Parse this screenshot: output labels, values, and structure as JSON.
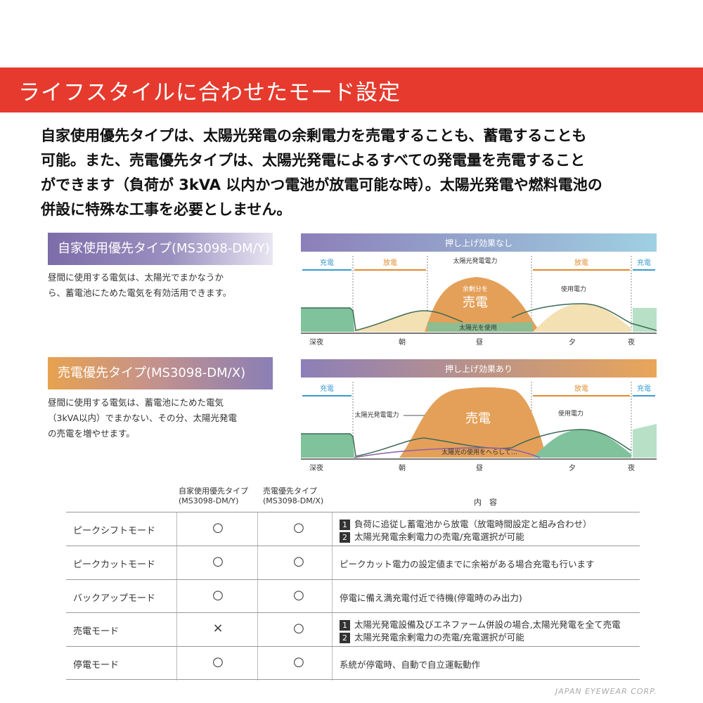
{
  "banner": {
    "title": "ライフスタイルに合わせたモード設定"
  },
  "intro": {
    "lines": [
      "自家使用優先タイプは、太陽光発電の余剰電力を売電することも、蓄電することも",
      "可能。また、売電優先タイプは、太陽光発電によるすべての発電量を売電すること",
      "ができます（負荷が 3kVA 以内かつ電池が放電可能な時）。太陽光発電や燃料電池の",
      "併設に特殊な工事を必要としません。"
    ]
  },
  "types": [
    {
      "label": "自家使用優先タイプ(MS3098-DM/Y)",
      "desc": [
        "昼間に使用する電気は、太陽光でまかなうか",
        "ら、蓄電池にためた電気を有効活用できます。"
      ]
    },
    {
      "label": "売電優先タイプ(MS3098-DM/X)",
      "desc": [
        "昼間に使用する電気は、蓄電池にためた電気",
        "（3kVA以内）でまかない、その分、太陽光発電",
        "の売電を増やせます。"
      ]
    }
  ],
  "charts": [
    {
      "header": "押し上げ効果なし",
      "phases": [
        "充電",
        "放電",
        "放電",
        "充電"
      ],
      "labels": {
        "solar": "太陽光発電電力",
        "surplus": "余剰分を",
        "sell": "売電",
        "usage": "使用電力",
        "use_solar": "太陽光を使用"
      },
      "time_axis": [
        "深夜",
        "朝",
        "昼",
        "夕",
        "夜"
      ]
    },
    {
      "header": "押し上げ効果あり",
      "phases": [
        "充電",
        "放電",
        "充電"
      ],
      "labels": {
        "solar": "太陽光発電電力",
        "sell": "売電",
        "usage": "使用電力",
        "reduce": "太陽光の使用をへらして…"
      },
      "time_axis": [
        "深夜",
        "朝",
        "昼",
        "夕",
        "夜"
      ]
    }
  ],
  "colors": {
    "banner": "#e53a2d",
    "charge": "#3a9bd0",
    "discharge": "#e38a2b",
    "sell": "#e4a059",
    "green": "#7fc29b",
    "cream": "#f3e1b3"
  },
  "table": {
    "headers": {
      "type_y": [
        "自家使用優先タイプ",
        "(MS3098-DM/Y)"
      ],
      "type_x": [
        "売電優先タイプ",
        "(MS3098-DM/X)"
      ],
      "content": "内　容"
    },
    "rows": [
      {
        "mode": "ピークシフトモード",
        "y": "○",
        "x": "○",
        "items": [
          {
            "num": "1",
            "text": "負荷に追従し蓄電池から放電（放電時間設定と組み合わせ）"
          },
          {
            "num": "2",
            "text": "太陽光発電余剰電力の売電/充電選択が可能"
          }
        ]
      },
      {
        "mode": "ピークカットモード",
        "y": "○",
        "x": "○",
        "items": [
          {
            "num": "",
            "text": "ピークカット電力の設定値までに余裕がある場合充電も行います"
          }
        ]
      },
      {
        "mode": "バックアップモード",
        "y": "○",
        "x": "○",
        "items": [
          {
            "num": "",
            "text": "停電に備え満充電付近で待機(停電時のみ出力)"
          }
        ]
      },
      {
        "mode": "売電モード",
        "y": "×",
        "x": "○",
        "items": [
          {
            "num": "1",
            "text": "太陽光発電設備及びエネファーム併設の場合,太陽光発電を全て売電"
          },
          {
            "num": "2",
            "text": "太陽光発電余剰電力の売電/充電選択が可能"
          }
        ]
      },
      {
        "mode": "停電モード",
        "y": "○",
        "x": "○",
        "items": [
          {
            "num": "",
            "text": "系統が停電時、自動で自立運転動作"
          }
        ]
      }
    ]
  },
  "watermark": "JAPAN EYEWEAR CORP."
}
